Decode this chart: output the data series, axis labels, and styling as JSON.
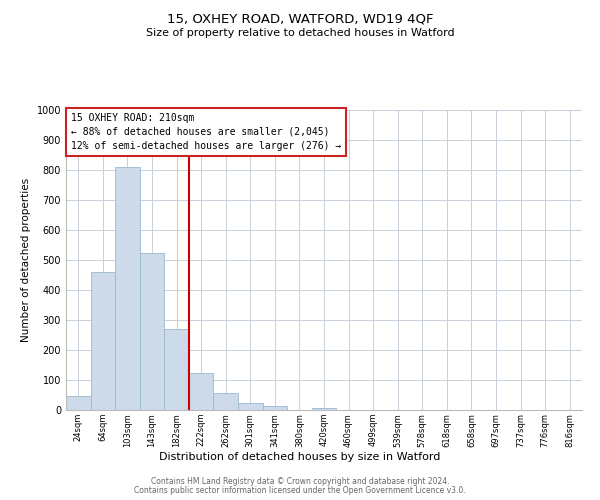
{
  "title": "15, OXHEY ROAD, WATFORD, WD19 4QF",
  "subtitle": "Size of property relative to detached houses in Watford",
  "xlabel": "Distribution of detached houses by size in Watford",
  "ylabel": "Number of detached properties",
  "bar_labels": [
    "24sqm",
    "64sqm",
    "103sqm",
    "143sqm",
    "182sqm",
    "222sqm",
    "262sqm",
    "301sqm",
    "341sqm",
    "380sqm",
    "420sqm",
    "460sqm",
    "499sqm",
    "539sqm",
    "578sqm",
    "618sqm",
    "658sqm",
    "697sqm",
    "737sqm",
    "776sqm",
    "816sqm"
  ],
  "bar_heights": [
    46,
    460,
    810,
    525,
    270,
    125,
    57,
    22,
    12,
    0,
    8,
    0,
    0,
    0,
    0,
    0,
    0,
    0,
    0,
    0,
    0
  ],
  "bar_color": "#ccdaea",
  "bar_edge_color": "#9ab8d0",
  "vline_color": "#cc0000",
  "vline_pos": 4.5,
  "annotation_line1": "15 OXHEY ROAD: 210sqm",
  "annotation_line2": "← 88% of detached houses are smaller (2,045)",
  "annotation_line3": "12% of semi-detached houses are larger (276) →",
  "ylim": [
    0,
    1000
  ],
  "yticks": [
    0,
    100,
    200,
    300,
    400,
    500,
    600,
    700,
    800,
    900,
    1000
  ],
  "footer1": "Contains HM Land Registry data © Crown copyright and database right 2024.",
  "footer2": "Contains public sector information licensed under the Open Government Licence v3.0.",
  "background_color": "#ffffff",
  "grid_color": "#c8d0dc",
  "title_fontsize": 9.5,
  "subtitle_fontsize": 8,
  "axis_label_fontsize": 7.5,
  "tick_label_fontsize": 6,
  "annotation_fontsize": 7,
  "footer_fontsize": 5.5
}
